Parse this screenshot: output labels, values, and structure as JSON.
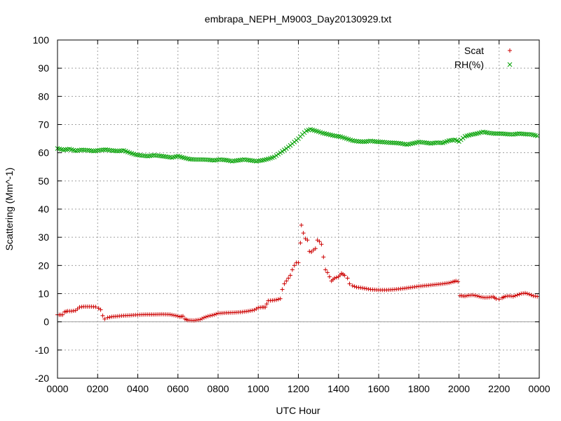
{
  "chart_data": {
    "type": "scatter",
    "title": "embrapa_NEPH_M9003_Day20130929.txt",
    "xlabel": "UTC Hour",
    "ylabel": "Scattering (Mm^-1)",
    "xlim": [
      0,
      24
    ],
    "ylim": [
      -20,
      100
    ],
    "x_ticks": [
      0,
      2,
      4,
      6,
      8,
      10,
      12,
      14,
      16,
      18,
      20,
      22,
      24
    ],
    "x_tick_labels": [
      "0000",
      "0200",
      "0400",
      "0600",
      "0800",
      "1000",
      "1200",
      "1400",
      "1600",
      "1800",
      "2000",
      "2200",
      "0000"
    ],
    "y_ticks": [
      -20,
      -10,
      0,
      10,
      20,
      30,
      40,
      50,
      60,
      70,
      80,
      90,
      100
    ],
    "grid": true,
    "zero_line": true,
    "legend_position": "top-right",
    "series": [
      {
        "name": "Scat",
        "marker": "plus",
        "color": "#cc0000",
        "points": [
          [
            0.0,
            2.5
          ],
          [
            0.25,
            2.5
          ],
          [
            0.35,
            3.5
          ],
          [
            0.5,
            3.8
          ],
          [
            0.7,
            3.8
          ],
          [
            0.9,
            4.0
          ],
          [
            1.1,
            5.2
          ],
          [
            1.3,
            5.4
          ],
          [
            1.5,
            5.4
          ],
          [
            1.7,
            5.4
          ],
          [
            1.9,
            5.3
          ],
          [
            2.05,
            4.8
          ],
          [
            2.15,
            4.3
          ],
          [
            2.25,
            2.2
          ],
          [
            2.35,
            1.0
          ],
          [
            2.5,
            1.5
          ],
          [
            2.7,
            1.8
          ],
          [
            3.0,
            2.0
          ],
          [
            3.3,
            2.2
          ],
          [
            3.6,
            2.3
          ],
          [
            4.0,
            2.5
          ],
          [
            4.4,
            2.6
          ],
          [
            4.8,
            2.6
          ],
          [
            5.2,
            2.7
          ],
          [
            5.6,
            2.6
          ],
          [
            5.9,
            2.2
          ],
          [
            6.1,
            1.8
          ],
          [
            6.25,
            2.0
          ],
          [
            6.35,
            1.0
          ],
          [
            6.5,
            0.6
          ],
          [
            6.8,
            0.5
          ],
          [
            7.1,
            0.8
          ],
          [
            7.3,
            1.5
          ],
          [
            7.5,
            2.0
          ],
          [
            7.8,
            2.5
          ],
          [
            8.0,
            3.0
          ],
          [
            8.4,
            3.2
          ],
          [
            8.8,
            3.3
          ],
          [
            9.2,
            3.5
          ],
          [
            9.5,
            3.8
          ],
          [
            9.8,
            4.2
          ],
          [
            10.0,
            5.0
          ],
          [
            10.2,
            5.2
          ],
          [
            10.35,
            5.2
          ],
          [
            10.5,
            7.5
          ],
          [
            10.7,
            7.6
          ],
          [
            10.9,
            7.8
          ],
          [
            11.0,
            8.0
          ],
          [
            11.1,
            8.2
          ],
          [
            11.2,
            11.5
          ],
          [
            11.3,
            13.5
          ],
          [
            11.4,
            14.5
          ],
          [
            11.5,
            15.5
          ],
          [
            11.6,
            16.5
          ],
          [
            11.7,
            18.5
          ],
          [
            11.8,
            20.0
          ],
          [
            11.9,
            21.0
          ],
          [
            12.0,
            21.0
          ],
          [
            12.1,
            28.0
          ],
          [
            12.15,
            34.3
          ],
          [
            12.25,
            31.5
          ],
          [
            12.35,
            29.5
          ],
          [
            12.45,
            29.0
          ],
          [
            12.55,
            25.0
          ],
          [
            12.65,
            24.8
          ],
          [
            12.75,
            25.5
          ],
          [
            12.85,
            26.0
          ],
          [
            12.95,
            29.0
          ],
          [
            13.05,
            28.5
          ],
          [
            13.15,
            27.5
          ],
          [
            13.25,
            23.0
          ],
          [
            13.35,
            18.5
          ],
          [
            13.45,
            17.5
          ],
          [
            13.55,
            16.0
          ],
          [
            13.65,
            14.5
          ],
          [
            13.8,
            15.5
          ],
          [
            14.0,
            16.0
          ],
          [
            14.15,
            17.2
          ],
          [
            14.3,
            16.5
          ],
          [
            14.45,
            15.5
          ],
          [
            14.55,
            13.5
          ],
          [
            14.7,
            12.8
          ],
          [
            14.9,
            12.3
          ],
          [
            15.2,
            12.0
          ],
          [
            15.6,
            11.5
          ],
          [
            16.0,
            11.3
          ],
          [
            16.4,
            11.3
          ],
          [
            16.8,
            11.5
          ],
          [
            17.2,
            11.8
          ],
          [
            17.6,
            12.2
          ],
          [
            18.0,
            12.6
          ],
          [
            18.4,
            12.9
          ],
          [
            18.8,
            13.2
          ],
          [
            19.2,
            13.5
          ],
          [
            19.5,
            13.8
          ],
          [
            19.7,
            14.2
          ],
          [
            19.85,
            14.5
          ],
          [
            19.95,
            14.3
          ],
          [
            20.05,
            9.3
          ],
          [
            20.3,
            9.1
          ],
          [
            20.5,
            9.4
          ],
          [
            20.7,
            9.5
          ],
          [
            20.9,
            9.2
          ],
          [
            21.1,
            8.8
          ],
          [
            21.3,
            8.6
          ],
          [
            21.5,
            8.7
          ],
          [
            21.7,
            8.9
          ],
          [
            21.85,
            8.2
          ],
          [
            22.0,
            8.0
          ],
          [
            22.15,
            8.5
          ],
          [
            22.3,
            9.0
          ],
          [
            22.5,
            9.2
          ],
          [
            22.7,
            9.0
          ],
          [
            22.9,
            9.5
          ],
          [
            23.1,
            10.0
          ],
          [
            23.3,
            10.2
          ],
          [
            23.5,
            9.8
          ],
          [
            23.7,
            9.2
          ],
          [
            23.9,
            9.0
          ]
        ]
      },
      {
        "name": "RH(%)",
        "marker": "cross",
        "color": "#00a000",
        "points": [
          [
            0.0,
            61.5
          ],
          [
            0.3,
            61.0
          ],
          [
            0.6,
            61.3
          ],
          [
            0.9,
            60.7
          ],
          [
            1.2,
            61.0
          ],
          [
            1.5,
            60.9
          ],
          [
            1.8,
            60.6
          ],
          [
            2.1,
            60.9
          ],
          [
            2.4,
            61.1
          ],
          [
            2.7,
            60.8
          ],
          [
            3.0,
            60.6
          ],
          [
            3.3,
            60.8
          ],
          [
            3.6,
            60.0
          ],
          [
            3.9,
            59.3
          ],
          [
            4.2,
            59.0
          ],
          [
            4.5,
            58.8
          ],
          [
            4.8,
            59.1
          ],
          [
            5.1,
            58.9
          ],
          [
            5.4,
            58.6
          ],
          [
            5.7,
            58.3
          ],
          [
            6.0,
            58.8
          ],
          [
            6.3,
            58.2
          ],
          [
            6.6,
            57.7
          ],
          [
            6.9,
            57.6
          ],
          [
            7.2,
            57.6
          ],
          [
            7.5,
            57.5
          ],
          [
            7.8,
            57.3
          ],
          [
            8.1,
            57.6
          ],
          [
            8.4,
            57.4
          ],
          [
            8.7,
            57.0
          ],
          [
            9.0,
            57.3
          ],
          [
            9.3,
            57.6
          ],
          [
            9.6,
            57.3
          ],
          [
            9.9,
            57.0
          ],
          [
            10.2,
            57.3
          ],
          [
            10.5,
            57.8
          ],
          [
            10.8,
            58.5
          ],
          [
            11.0,
            59.5
          ],
          [
            11.2,
            60.5
          ],
          [
            11.4,
            61.5
          ],
          [
            11.6,
            62.6
          ],
          [
            11.8,
            63.8
          ],
          [
            12.0,
            65.0
          ],
          [
            12.2,
            66.5
          ],
          [
            12.4,
            67.8
          ],
          [
            12.6,
            68.3
          ],
          [
            12.8,
            67.9
          ],
          [
            13.0,
            67.5
          ],
          [
            13.2,
            67.0
          ],
          [
            13.5,
            66.5
          ],
          [
            13.8,
            66.0
          ],
          [
            14.1,
            65.7
          ],
          [
            14.4,
            65.0
          ],
          [
            14.7,
            64.3
          ],
          [
            15.0,
            64.0
          ],
          [
            15.3,
            63.9
          ],
          [
            15.6,
            64.2
          ],
          [
            15.9,
            63.9
          ],
          [
            16.2,
            63.8
          ],
          [
            16.5,
            63.6
          ],
          [
            16.8,
            63.5
          ],
          [
            17.1,
            63.3
          ],
          [
            17.4,
            62.9
          ],
          [
            17.7,
            63.3
          ],
          [
            18.0,
            63.8
          ],
          [
            18.3,
            63.6
          ],
          [
            18.6,
            63.3
          ],
          [
            18.9,
            63.6
          ],
          [
            19.2,
            63.5
          ],
          [
            19.5,
            64.3
          ],
          [
            19.8,
            64.6
          ],
          [
            20.0,
            64.0
          ],
          [
            20.3,
            65.8
          ],
          [
            20.6,
            66.4
          ],
          [
            20.9,
            66.8
          ],
          [
            21.2,
            67.4
          ],
          [
            21.5,
            67.0
          ],
          [
            21.8,
            66.8
          ],
          [
            22.1,
            66.8
          ],
          [
            22.4,
            66.6
          ],
          [
            22.7,
            66.5
          ],
          [
            23.0,
            66.8
          ],
          [
            23.3,
            66.6
          ],
          [
            23.6,
            66.5
          ],
          [
            23.9,
            66.0
          ]
        ]
      }
    ]
  }
}
